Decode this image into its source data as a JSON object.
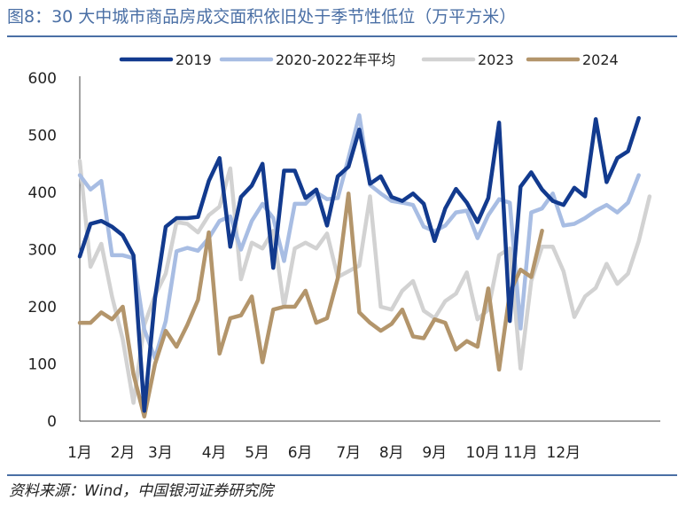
{
  "figure": {
    "title": "图8：30 大中城市商品房成交面积依旧处于季节性低位（万平方米）",
    "source": "资料来源：Wind，中国银河证券研究院"
  },
  "colors": {
    "title": "#4a6fa5",
    "s2019": "#123a8e",
    "s2020_2022": "#a8bde3",
    "s2023": "#d2d2d2",
    "s2024": "#b3956b"
  },
  "chart_data": {
    "type": "line",
    "title": "",
    "xlabel": "",
    "ylabel": "",
    "ylim": [
      0,
      600
    ],
    "yticks": [
      0,
      100,
      200,
      300,
      400,
      500,
      600
    ],
    "xlim": [
      1,
      55
    ],
    "x_tick_labels": [
      {
        "label": "1月",
        "week": 1
      },
      {
        "label": "2月",
        "week": 5
      },
      {
        "label": "3月",
        "week": 8.5
      },
      {
        "label": "4月",
        "week": 13.5
      },
      {
        "label": "5月",
        "week": 17.5
      },
      {
        "label": "6月",
        "week": 21.5
      },
      {
        "label": "7月",
        "week": 26
      },
      {
        "label": "8月",
        "week": 30
      },
      {
        "label": "9月",
        "week": 34
      },
      {
        "label": "10月",
        "week": 38.5
      },
      {
        "label": "11月",
        "week": 42
      },
      {
        "label": "12月",
        "week": 46
      }
    ],
    "legend_position": "top",
    "grid": false,
    "series": [
      {
        "name": "2019",
        "color_key": "s2019",
        "width": 4.5,
        "values": [
          288,
          345,
          350,
          340,
          325,
          290,
          18,
          215,
          340,
          355,
          355,
          357,
          420,
          460,
          305,
          392,
          412,
          450,
          268,
          438,
          438,
          390,
          405,
          342,
          428,
          445,
          510,
          415,
          428,
          392,
          385,
          398,
          380,
          315,
          372,
          406,
          382,
          348,
          390,
          522,
          175,
          410,
          435,
          405,
          385,
          378,
          408,
          393,
          528,
          418,
          460,
          472,
          530
        ]
      },
      {
        "name": "2020-2022年平均",
        "color_key": "s2020_2022",
        "width": 4.5,
        "values": [
          430,
          405,
          420,
          290,
          290,
          285,
          160,
          110,
          175,
          297,
          303,
          298,
          320,
          350,
          358,
          300,
          350,
          380,
          355,
          280,
          380,
          380,
          400,
          388,
          390,
          460,
          535,
          413,
          398,
          385,
          382,
          378,
          340,
          332,
          342,
          365,
          368,
          320,
          360,
          388,
          382,
          162,
          365,
          372,
          398,
          342,
          345,
          355,
          368,
          378,
          365,
          382,
          430
        ]
      },
      {
        "name": "2023",
        "color_key": "s2023",
        "width": 4.5,
        "values": [
          455,
          270,
          310,
          218,
          143,
          32,
          168,
          220,
          258,
          348,
          345,
          330,
          360,
          375,
          442,
          248,
          312,
          302,
          333,
          200,
          302,
          312,
          302,
          328,
          252,
          262,
          272,
          393,
          200,
          195,
          228,
          245,
          193,
          180,
          210,
          223,
          260,
          178,
          195,
          290,
          302,
          92,
          245,
          305,
          305,
          262,
          182,
          218,
          233,
          275,
          240,
          258,
          315,
          393
        ]
      },
      {
        "name": "2024",
        "color_key": "s2024",
        "width": 4.5,
        "values": [
          172,
          172,
          190,
          178,
          200,
          82,
          8,
          100,
          158,
          130,
          168,
          212,
          330,
          118,
          180,
          185,
          218,
          103,
          195,
          200,
          200,
          228,
          172,
          180,
          250,
          398,
          190,
          172,
          158,
          170,
          195,
          148,
          145,
          178,
          172,
          125,
          140,
          130,
          232,
          90,
          225,
          265,
          252,
          333
        ]
      }
    ]
  }
}
